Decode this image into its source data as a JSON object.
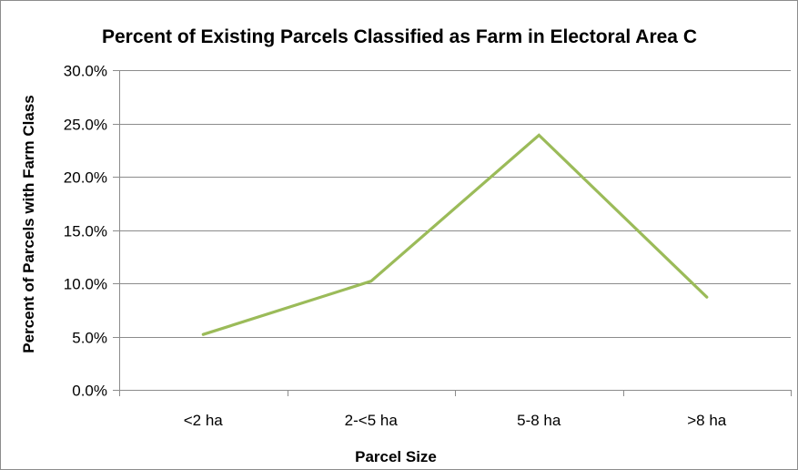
{
  "chart_data": {
    "type": "line",
    "title": "Percent of Existing Parcels Classified as Farm in Electoral Area C",
    "xlabel": "Parcel Size",
    "ylabel": "Percent of Parcels with Farm  Class",
    "categories": [
      "<2 ha",
      "2-<5 ha",
      "5-8 ha",
      ">8 ha"
    ],
    "series": [
      {
        "values": [
          0.052,
          0.102,
          0.239,
          0.087
        ],
        "color": "#9bbb59"
      }
    ],
    "ylim": [
      0,
      0.3
    ],
    "yticks": [
      0,
      0.05,
      0.1,
      0.15,
      0.2,
      0.25,
      0.3
    ],
    "ytick_labels": [
      "0.0%",
      "5.0%",
      "10.0%",
      "15.0%",
      "20.0%",
      "25.0%",
      "30.0%"
    ],
    "grid": true,
    "legend": "none"
  }
}
